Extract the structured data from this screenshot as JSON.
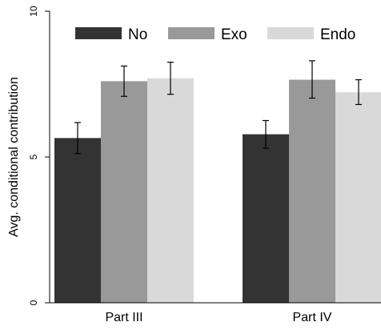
{
  "chart_data": {
    "type": "bar",
    "title": "",
    "xlabel": "",
    "ylabel": "Avg. conditional contribution",
    "ylim": [
      0,
      10
    ],
    "yticks": [
      0,
      5,
      10
    ],
    "categories": [
      "Part III",
      "Part IV"
    ],
    "series": [
      {
        "name": "No",
        "color": "#333333",
        "values": [
          5.65,
          5.78
        ],
        "error_low": [
          5.12,
          5.3
        ],
        "error_high": [
          6.18,
          6.25
        ]
      },
      {
        "name": "Exo",
        "color": "#999999",
        "values": [
          7.6,
          7.65
        ],
        "error_low": [
          7.08,
          7.02
        ],
        "error_high": [
          8.12,
          8.3
        ]
      },
      {
        "name": "Endo",
        "color": "#d9d9d9",
        "values": [
          7.7,
          7.22
        ],
        "error_low": [
          7.15,
          6.8
        ],
        "error_high": [
          8.25,
          7.65
        ]
      }
    ],
    "legend_position": "top",
    "grid": false,
    "error_bars": true
  }
}
